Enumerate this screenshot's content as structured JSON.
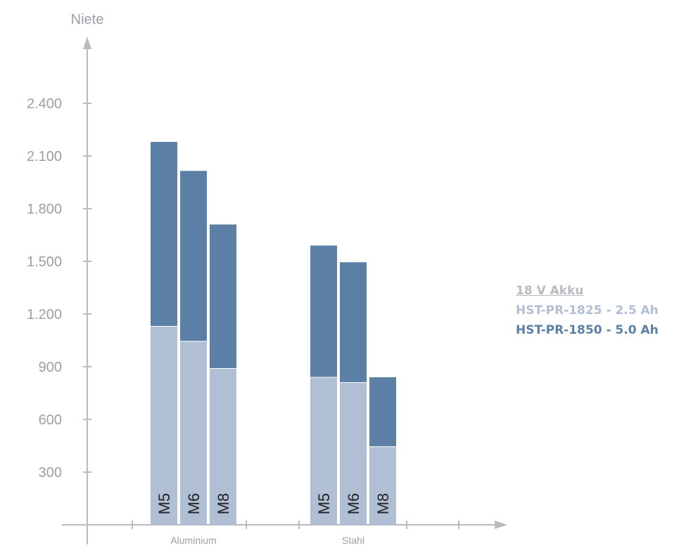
{
  "chart_data": {
    "type": "bar",
    "stacked": true,
    "title": "",
    "ylabel": "Niete",
    "xlabel": "",
    "ylim": [
      0,
      2700
    ],
    "yticks": [
      300,
      600,
      900,
      1200,
      1500,
      1800,
      2100,
      2400
    ],
    "ytick_labels": [
      "300",
      "600",
      "900",
      "1.200",
      "1.500",
      "1.800",
      "2.100",
      "2.400"
    ],
    "groups": [
      {
        "name": "Aluminium",
        "bars": [
          {
            "label": "M5",
            "values": [
              1130,
              1050
            ]
          },
          {
            "label": "M6",
            "values": [
              1045,
              970
            ]
          },
          {
            "label": "M8",
            "values": [
              890,
              820
            ]
          }
        ]
      },
      {
        "name": "Stahl",
        "bars": [
          {
            "label": "M5",
            "values": [
              840,
              750
            ]
          },
          {
            "label": "M6",
            "values": [
              810,
              685
            ]
          },
          {
            "label": "M8",
            "values": [
              445,
              395
            ]
          }
        ]
      }
    ],
    "series": [
      {
        "name": "HST-PR-1825 - 2.5 Ah",
        "color": "#b0bfd4"
      },
      {
        "name": "HST-PR-1850 - 5.0 Ah",
        "color": "#5b7fa5"
      }
    ],
    "legend": {
      "title": "18 V Akku",
      "placement": "right",
      "title_color": "#b8bbbf"
    },
    "grid": false,
    "axis_color": "#b8bbbf"
  }
}
